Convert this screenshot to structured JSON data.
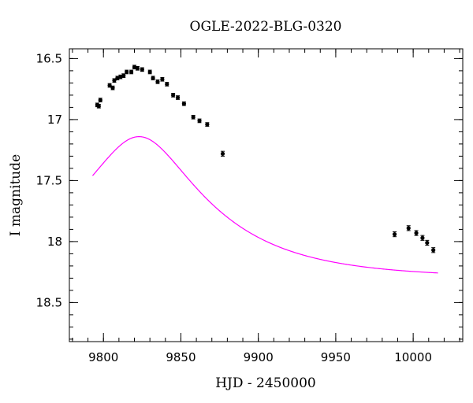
{
  "chart_data": {
    "type": "scatter",
    "title": "OGLE-2022-BLG-0320",
    "xlabel": "HJD - 2450000",
    "ylabel": "I magnitude",
    "xlim": [
      9778,
      10032
    ],
    "ylim": [
      18.82,
      16.42
    ],
    "y_inverted": true,
    "grid": false,
    "x_ticks": [
      9800,
      9850,
      9900,
      9950,
      10000
    ],
    "x_tick_labels": [
      "9800",
      "9850",
      "9900",
      "9950",
      "10000"
    ],
    "y_ticks": [
      16.5,
      17,
      17.5,
      18,
      18.5
    ],
    "y_tick_labels": [
      "16.5",
      "17",
      "17.5",
      "18",
      "18.5"
    ],
    "series": [
      {
        "kind": "points_with_errorbars",
        "color": "#000000",
        "points": [
          {
            "x": 9796,
            "y": 16.88,
            "err": 0.015
          },
          {
            "x": 9797,
            "y": 16.89,
            "err": 0.015
          },
          {
            "x": 9798,
            "y": 16.84,
            "err": 0.015
          },
          {
            "x": 9804,
            "y": 16.72,
            "err": 0.015
          },
          {
            "x": 9806,
            "y": 16.74,
            "err": 0.015
          },
          {
            "x": 9807,
            "y": 16.68,
            "err": 0.015
          },
          {
            "x": 9809,
            "y": 16.66,
            "err": 0.015
          },
          {
            "x": 9811,
            "y": 16.65,
            "err": 0.015
          },
          {
            "x": 9813,
            "y": 16.64,
            "err": 0.015
          },
          {
            "x": 9815,
            "y": 16.61,
            "err": 0.015
          },
          {
            "x": 9818,
            "y": 16.61,
            "err": 0.015
          },
          {
            "x": 9820,
            "y": 16.57,
            "err": 0.015
          },
          {
            "x": 9822,
            "y": 16.58,
            "err": 0.015
          },
          {
            "x": 9825,
            "y": 16.59,
            "err": 0.015
          },
          {
            "x": 9830,
            "y": 16.61,
            "err": 0.015
          },
          {
            "x": 9832,
            "y": 16.66,
            "err": 0.015
          },
          {
            "x": 9835,
            "y": 16.69,
            "err": 0.015
          },
          {
            "x": 9838,
            "y": 16.67,
            "err": 0.015
          },
          {
            "x": 9841,
            "y": 16.71,
            "err": 0.015
          },
          {
            "x": 9845,
            "y": 16.8,
            "err": 0.015
          },
          {
            "x": 9848,
            "y": 16.82,
            "err": 0.015
          },
          {
            "x": 9852,
            "y": 16.87,
            "err": 0.015
          },
          {
            "x": 9858,
            "y": 16.98,
            "err": 0.015
          },
          {
            "x": 9862,
            "y": 17.01,
            "err": 0.015
          },
          {
            "x": 9867,
            "y": 17.04,
            "err": 0.015
          },
          {
            "x": 9877,
            "y": 17.28,
            "err": 0.02
          },
          {
            "x": 9988,
            "y": 17.94,
            "err": 0.02
          },
          {
            "x": 9997,
            "y": 17.89,
            "err": 0.02
          },
          {
            "x": 10002,
            "y": 17.93,
            "err": 0.02
          },
          {
            "x": 10006,
            "y": 17.97,
            "err": 0.02
          },
          {
            "x": 10009,
            "y": 18.01,
            "err": 0.02
          },
          {
            "x": 10013,
            "y": 18.07,
            "err": 0.02
          }
        ]
      },
      {
        "kind": "model_curve",
        "color": "#ff00ff",
        "model": {
          "type": "paczynski",
          "t0": 9823,
          "tE": 85,
          "u0": 0.36,
          "baseline_mag": 18.3,
          "blend_fs": 1.0
        },
        "x_range": [
          9793,
          10016
        ]
      }
    ]
  }
}
